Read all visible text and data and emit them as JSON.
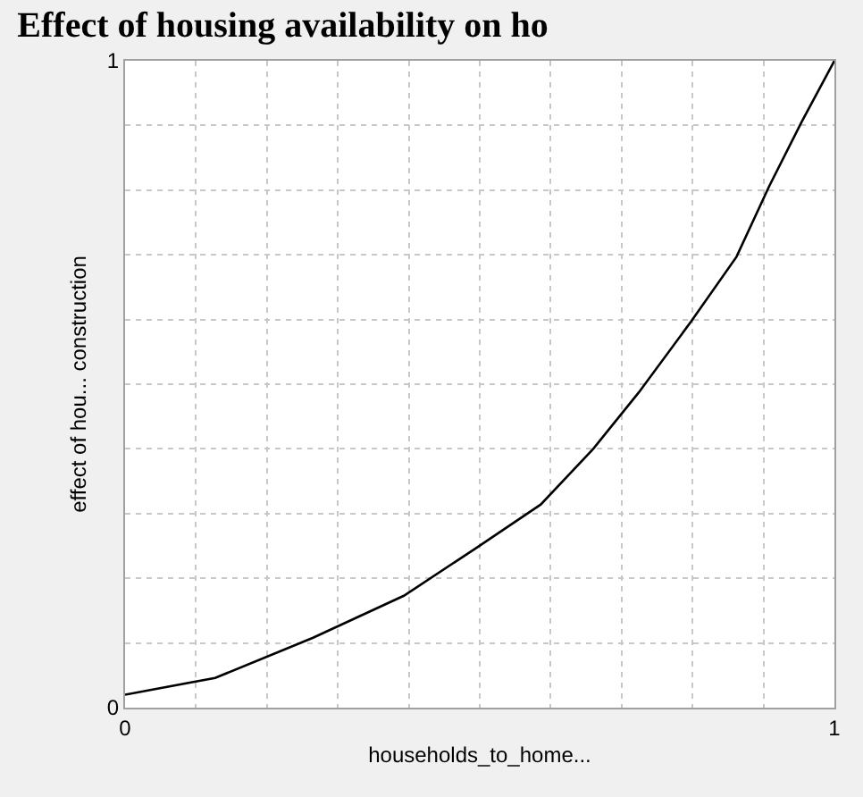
{
  "chart_data": {
    "type": "line",
    "title": "Effect of housing availability on ho",
    "xlabel": "households_to_home...",
    "ylabel": "effect of hou... construction",
    "series": [
      {
        "color": "#000000",
        "x": [
          0,
          0.127,
          0.265,
          0.393,
          0.494,
          0.586,
          0.66,
          0.724,
          0.798,
          0.862,
          0.908,
          0.954,
          1.0
        ],
        "values": [
          0.02,
          0.046,
          0.108,
          0.173,
          0.246,
          0.314,
          0.4,
          0.487,
          0.597,
          0.697,
          0.806,
          0.906,
          1.0
        ]
      }
    ],
    "xlim": [
      0,
      1
    ],
    "ylim": [
      0,
      1
    ],
    "xticks": [
      0,
      {
        "value": 0.1,
        "label": null
      },
      {
        "value": 0.2,
        "label": null
      },
      {
        "value": 0.3,
        "label": null
      },
      {
        "value": 0.4,
        "label": null
      },
      {
        "value": 0.5,
        "label": null
      },
      {
        "value": 0.6,
        "label": null
      },
      {
        "value": 0.7,
        "label": null
      },
      {
        "value": 0.8,
        "label": null
      },
      {
        "value": 0.9,
        "label": null
      },
      1
    ],
    "yticks": [
      0,
      {
        "value": 0.1,
        "label": null
      },
      {
        "value": 0.2,
        "label": null
      },
      {
        "value": 0.3,
        "label": null
      },
      {
        "value": 0.4,
        "label": null
      },
      {
        "value": 0.5,
        "label": null
      },
      {
        "value": 0.6,
        "label": null
      },
      {
        "value": 0.7,
        "label": null
      },
      {
        "value": 0.8,
        "label": null
      },
      {
        "value": 0.9,
        "label": null
      },
      1
    ],
    "grid": true,
    "line_style": "solid"
  }
}
